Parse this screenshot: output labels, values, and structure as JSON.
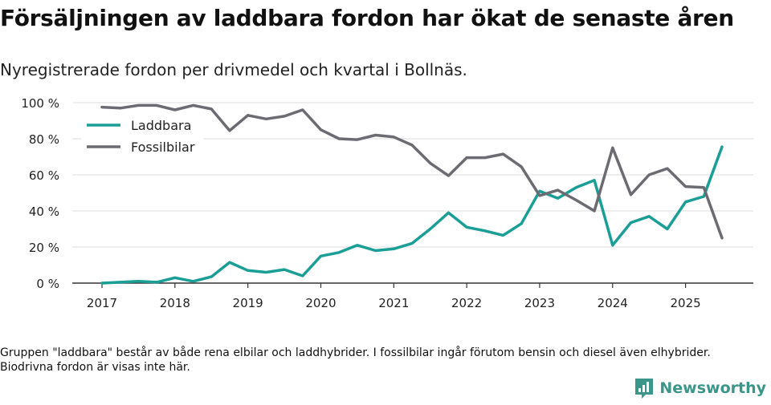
{
  "title": "Försäljningen av laddbara fordon har ökat de senaste åren",
  "subtitle": "Nyregistrerade fordon per drivmedel och kvartal i Bollnäs.",
  "footnote": "Gruppen \"laddbara\" består av både rena elbilar och laddhybrider. I fossilbilar ingår förutom bensin och diesel även elhybrider. Biodrivna fordon är visas inte här.",
  "brand": "Newsworthy",
  "chart_data": {
    "type": "line",
    "title": "Försäljningen av laddbara fordon har ökat de senaste åren",
    "subtitle": "Nyregistrerade fordon per drivmedel och kvartal i Bollnäs.",
    "xlabel": "",
    "ylabel": "",
    "ylim": [
      0,
      100
    ],
    "yticks": [
      0,
      20,
      40,
      60,
      80,
      100
    ],
    "ytick_labels": [
      "0 %",
      "20 %",
      "40 %",
      "60 %",
      "80 %",
      "100 %"
    ],
    "xtick_labels": [
      "2017",
      "2018",
      "2019",
      "2020",
      "2021",
      "2022",
      "2023",
      "2024",
      "2025"
    ],
    "legend_position": "top-left",
    "grid": true,
    "x": [
      "2017 Q1",
      "2017 Q2",
      "2017 Q3",
      "2017 Q4",
      "2018 Q1",
      "2018 Q2",
      "2018 Q3",
      "2018 Q4",
      "2019 Q1",
      "2019 Q2",
      "2019 Q3",
      "2019 Q4",
      "2020 Q1",
      "2020 Q2",
      "2020 Q3",
      "2020 Q4",
      "2021 Q1",
      "2021 Q2",
      "2021 Q3",
      "2021 Q4",
      "2022 Q1",
      "2022 Q2",
      "2022 Q3",
      "2022 Q4",
      "2023 Q1",
      "2023 Q2",
      "2023 Q3",
      "2023 Q4",
      "2024 Q1",
      "2024 Q2",
      "2024 Q3",
      "2024 Q4",
      "2025 Q1",
      "2025 Q2",
      "2025 Q3"
    ],
    "series": [
      {
        "name": "Laddbara",
        "color": "#1a9e96",
        "values": [
          0,
          0.5,
          1,
          0.5,
          3,
          1,
          3.5,
          11.5,
          7,
          6,
          7.5,
          4,
          15,
          17,
          21,
          18,
          19,
          22,
          30,
          39,
          31,
          29,
          26.5,
          33,
          51,
          47,
          53,
          57,
          21,
          33.5,
          37,
          30,
          45,
          48,
          75.5
        ]
      },
      {
        "name": "Fossilbilar",
        "color": "#6c6b72",
        "values": [
          97.5,
          97,
          98.5,
          98.5,
          96,
          98.5,
          96.5,
          84.5,
          93,
          91,
          92.5,
          96,
          85,
          80,
          79.5,
          82,
          81,
          76.5,
          66.5,
          59.5,
          69.5,
          69.5,
          71.5,
          64.5,
          48.5,
          51.5,
          46,
          40,
          75,
          49,
          60,
          63.5,
          53.5,
          53,
          25
        ]
      }
    ]
  }
}
